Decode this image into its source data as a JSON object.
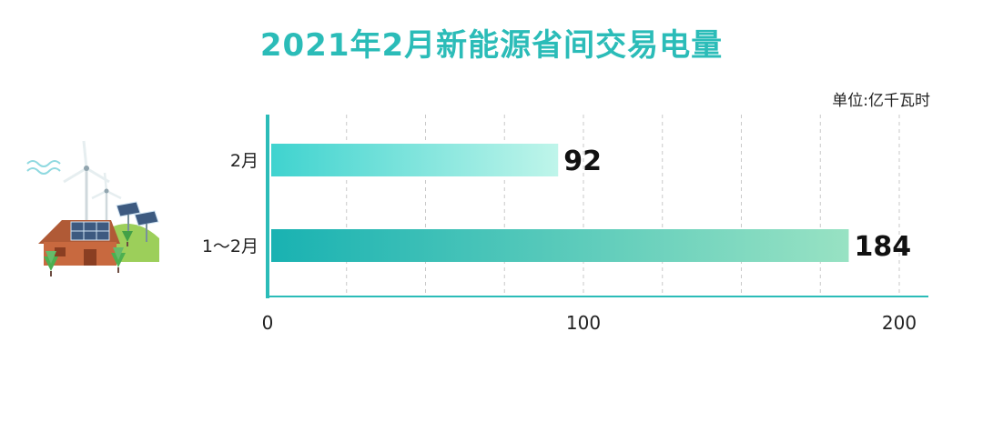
{
  "title": "2021年2月新能源省间交易电量",
  "unit": "单位:亿千瓦时",
  "colors": {
    "title": "#2bbcb8",
    "axis": "#2bbcb8",
    "bar_short_start": "#3fd3cf",
    "bar_short_end": "#bff5ea",
    "bar_long_start": "#19b2b2",
    "bar_long_end": "#98e2c3"
  },
  "chart_data": {
    "type": "bar",
    "orientation": "horizontal",
    "categories": [
      "2月",
      "1～2月"
    ],
    "values": [
      92,
      184
    ],
    "value_labels": [
      "92",
      "184"
    ],
    "xlim": [
      0,
      200
    ],
    "xticks": [
      0,
      100,
      200
    ],
    "xtick_labels": [
      "0",
      "100",
      "200"
    ],
    "grid": "dashed vertical",
    "title": "2021年2月新能源省间交易电量",
    "unit": "单位:亿千瓦时"
  }
}
